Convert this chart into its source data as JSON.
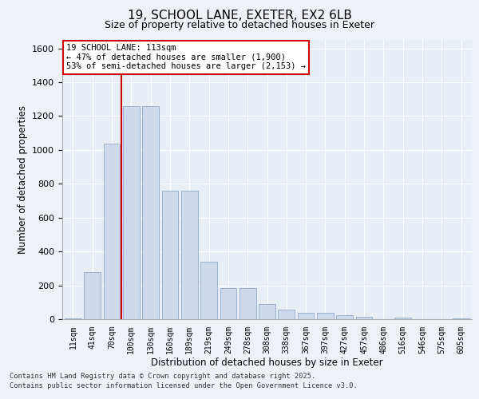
{
  "title_line1": "19, SCHOOL LANE, EXETER, EX2 6LB",
  "title_line2": "Size of property relative to detached houses in Exeter",
  "xlabel": "Distribution of detached houses by size in Exeter",
  "ylabel": "Number of detached properties",
  "categories": [
    "11sqm",
    "41sqm",
    "70sqm",
    "100sqm",
    "130sqm",
    "160sqm",
    "189sqm",
    "219sqm",
    "249sqm",
    "278sqm",
    "308sqm",
    "338sqm",
    "367sqm",
    "397sqm",
    "427sqm",
    "457sqm",
    "486sqm",
    "516sqm",
    "546sqm",
    "575sqm",
    "605sqm"
  ],
  "values": [
    5,
    280,
    1035,
    1260,
    1260,
    760,
    760,
    340,
    185,
    185,
    90,
    55,
    40,
    40,
    25,
    15,
    0,
    10,
    0,
    0,
    3
  ],
  "bar_color": "#ccdaeb",
  "bar_edge_color": "#90aac8",
  "vline_color": "#cc0000",
  "vline_position": 2.5,
  "annotation_text": "19 SCHOOL LANE: 113sqm\n← 47% of detached houses are smaller (1,900)\n53% of semi-detached houses are larger (2,153) →",
  "annotation_box_color": "#ffffff",
  "annotation_box_edge": "#cc0000",
  "ylim": [
    0,
    1650
  ],
  "yticks": [
    0,
    200,
    400,
    600,
    800,
    1000,
    1200,
    1400,
    1600
  ],
  "footer_line1": "Contains HM Land Registry data © Crown copyright and database right 2025.",
  "footer_line2": "Contains public sector information licensed under the Open Government Licence v3.0.",
  "bg_color": "#eef2f7",
  "plot_bg_color": "#e8eef6"
}
